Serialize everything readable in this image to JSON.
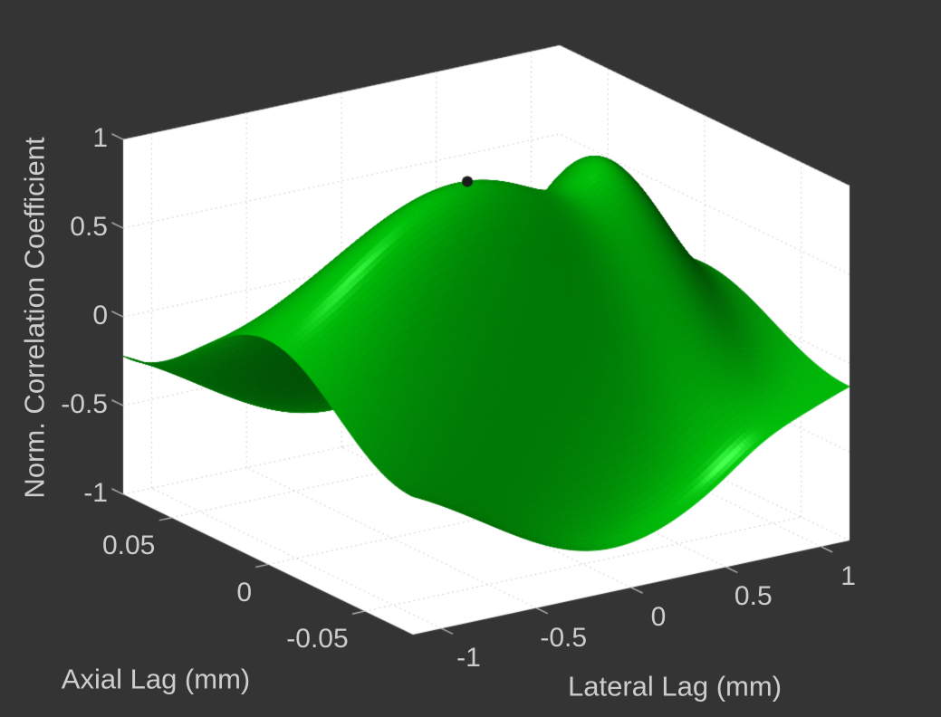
{
  "figure": {
    "background_color": "#343434",
    "axes_background": "#ffffff",
    "text_color": "#cdcdcd",
    "grid_color": "#c4c4c4",
    "tick_mark_color": "#c4c4c4"
  },
  "chart_data": {
    "type": "surface",
    "title": "",
    "legend": "none",
    "grid": true,
    "axes": {
      "axial": {
        "label": "Axial Lag (mm)",
        "range": [
          -0.075,
          0.075
        ],
        "ticks": [
          {
            "value": 0.05,
            "label": "0.05"
          },
          {
            "value": 0,
            "label": "0"
          },
          {
            "value": -0.05,
            "label": "-0.05"
          }
        ]
      },
      "lateral": {
        "label": "Lateral Lag (mm)",
        "range": [
          -1.15,
          1.15
        ],
        "ticks": [
          {
            "value": -1,
            "label": "-1"
          },
          {
            "value": -0.5,
            "label": "-0.5"
          },
          {
            "value": 0,
            "label": "0"
          },
          {
            "value": 0.5,
            "label": "0.5"
          },
          {
            "value": 1,
            "label": "1"
          }
        ]
      },
      "z": {
        "label": "Norm. Correlation Coefficient",
        "range": [
          -1,
          1
        ],
        "ticks": [
          {
            "value": 1,
            "label": "1"
          },
          {
            "value": 0.5,
            "label": "0.5"
          },
          {
            "value": 0,
            "label": "0"
          },
          {
            "value": -0.5,
            "label": "-0.5"
          },
          {
            "value": -1,
            "label": "-1"
          }
        ]
      }
    },
    "surface_model": {
      "formula": "z = cos(2*pi*ax/ax_period)*exp(-(ax/ax_env)^2) * amp*exp(-(((lat-lat_center)/lat_env)^2)) + bump_amp*exp(-((lat-bump_lat)/bump_wlat)^2 - ((ax-bump_ax)/bump_wax)^2)",
      "ax_period": 0.155,
      "ax_env": 0.18,
      "amp": 0.9,
      "lat_center": -0.1,
      "lat_env": 0.95,
      "bump_amp": 0.42,
      "bump_lat": 0.7,
      "bump_wlat": 0.22,
      "bump_ax": 0.02,
      "bump_wax": 0.06,
      "grid_n_axial": 80,
      "grid_n_lateral": 130
    },
    "sample_grid": {
      "axial_values": [
        -0.05,
        0,
        0.05
      ],
      "lateral_values": [
        -1,
        -0.5,
        0,
        0.5,
        1
      ],
      "z_values": [
        [
          -0.15,
          -0.31,
          -0.36,
          -0.2,
          -0.08
        ],
        [
          0.37,
          0.75,
          0.89,
          0.77,
          0.29
        ],
        [
          -0.15,
          -0.31,
          -0.36,
          -0.1,
          -0.05
        ]
      ]
    },
    "peak_marker": {
      "axial": 0,
      "lateral": -0.1,
      "z": 0.89,
      "color": "#1c1c1c",
      "radius_px": 6
    },
    "projection": {
      "left_corner": [
        136,
        546
      ],
      "front_corner": [
        456,
        701
      ],
      "right_corner": [
        938,
        597
      ],
      "z_pixels_per_unit": 196
    },
    "style": {
      "surface_base_rgb": [
        0,
        165,
        8
      ],
      "ambient": 0.42,
      "diffuse": 0.78,
      "specular": 0.8,
      "shininess": 24,
      "light_dir": [
        -0.18,
        -0.68,
        0.71
      ],
      "view_dir": [
        -0.45,
        -0.58,
        0.68
      ],
      "normal_space_scale": [
        1.0,
        1.6,
        0.55
      ],
      "tick_len": 14
    }
  }
}
